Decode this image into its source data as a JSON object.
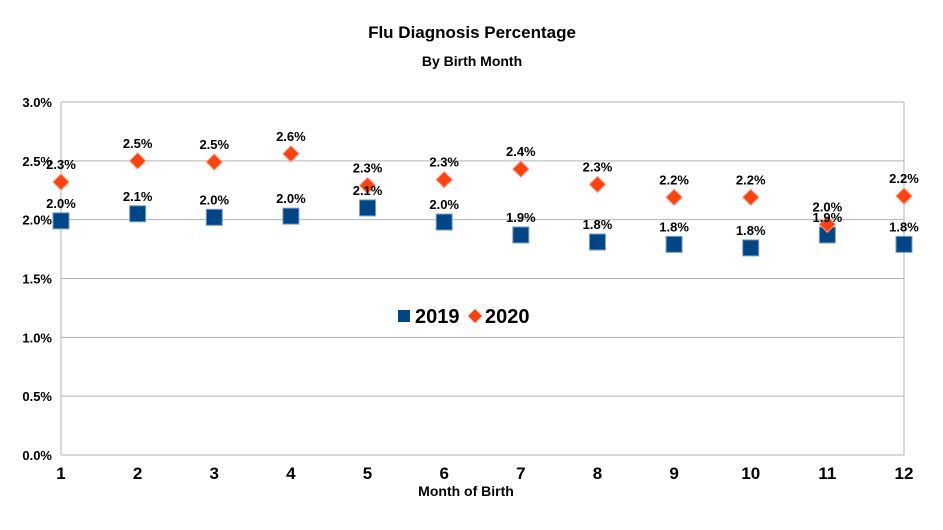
{
  "chart_data": {
    "type": "scatter",
    "title": "Flu Diagnosis Percentage",
    "subtitle": "By Birth Month",
    "xlabel": "Month of Birth",
    "ylabel": "",
    "x": [
      1,
      2,
      3,
      4,
      5,
      6,
      7,
      8,
      9,
      10,
      11,
      12
    ],
    "xlim": [
      1,
      12
    ],
    "ylim": [
      0,
      3.0
    ],
    "y_ticks": [
      0.0,
      0.5,
      1.0,
      1.5,
      2.0,
      2.5,
      3.0
    ],
    "y_tick_labels": [
      "0.0%",
      "0.5%",
      "1.0%",
      "1.5%",
      "2.0%",
      "2.5%",
      "3.0%"
    ],
    "x_tick_labels": [
      "1",
      "2",
      "3",
      "4",
      "5",
      "6",
      "7",
      "8",
      "9",
      "10",
      "11",
      "12"
    ],
    "grid": "horizontal",
    "legend_position": "center",
    "series": [
      {
        "name": "2019",
        "color": "#004586",
        "marker": "square",
        "values": [
          1.99,
          2.05,
          2.02,
          2.03,
          2.1,
          1.98,
          1.87,
          1.81,
          1.79,
          1.76,
          1.87,
          1.79
        ],
        "labels": [
          "2.0%",
          "2.1%",
          "2.0%",
          "2.0%",
          "2.1%",
          "2.0%",
          "1.9%",
          "1.8%",
          "1.8%",
          "1.8%",
          "1.9%",
          "1.8%"
        ]
      },
      {
        "name": "2020",
        "color": "#ff420e",
        "marker": "diamond",
        "values": [
          2.32,
          2.5,
          2.49,
          2.56,
          2.29,
          2.34,
          2.43,
          2.3,
          2.19,
          2.19,
          1.96,
          2.2
        ],
        "labels": [
          "2.3%",
          "2.5%",
          "2.5%",
          "2.6%",
          "2.3%",
          "2.3%",
          "2.4%",
          "2.3%",
          "2.2%",
          "2.2%",
          "2.0%",
          "2.2%"
        ]
      }
    ]
  }
}
